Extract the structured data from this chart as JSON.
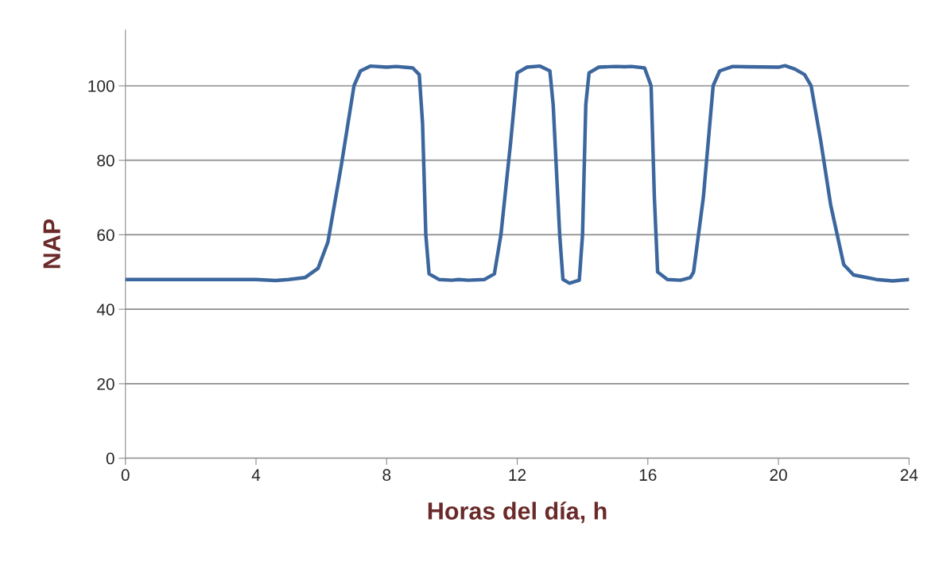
{
  "chart_data": {
    "type": "line",
    "xlabel": "Horas del día, h",
    "ylabel": "NAP",
    "xlim": [
      0,
      24
    ],
    "xticks": [
      0,
      4,
      8,
      12,
      16,
      20,
      24
    ],
    "ylim": [
      0,
      115
    ],
    "yticks": [
      0,
      20,
      40,
      60,
      80,
      100
    ],
    "grid": "y",
    "marker": "none",
    "line_style": "solid",
    "series": [
      {
        "color": "#3c679e",
        "x": [
          0,
          4,
          4.6,
          5,
          5.5,
          5.9,
          6.2,
          6.6,
          7.0,
          7.2,
          7.5,
          8,
          8.3,
          8.8,
          9.0,
          9.1,
          9.2,
          9.3,
          9.6,
          10,
          10.2,
          10.5,
          11,
          11.3,
          11.5,
          11.8,
          12.0,
          12.3,
          12.7,
          13.0,
          13.1,
          13.3,
          13.4,
          13.6,
          13.9,
          14.0,
          14.1,
          14.2,
          14.5,
          15,
          15.3,
          15.5,
          15.9,
          16.1,
          16.2,
          16.3,
          16.6,
          17,
          17.3,
          17.4,
          17.7,
          18,
          18.2,
          18.6,
          19,
          20,
          20.2,
          20.5,
          20.8,
          21.0,
          21.3,
          21.6,
          22.0,
          22.3,
          23,
          23.5,
          24
        ],
        "values": [
          48,
          48,
          47.7,
          48,
          48.5,
          51,
          58,
          78,
          100,
          104,
          105.3,
          105,
          105.2,
          104.8,
          103,
          90,
          60,
          49.5,
          48,
          47.8,
          48,
          47.8,
          48,
          49.5,
          60,
          85,
          103.5,
          105,
          105.3,
          104,
          95,
          60,
          48,
          47,
          47.8,
          60,
          95,
          103.5,
          105,
          105.2,
          105.1,
          105.2,
          104.8,
          100,
          70,
          50,
          48,
          47.8,
          48.5,
          50,
          70,
          100,
          104,
          105.2,
          105.1,
          105,
          105.4,
          104.5,
          103,
          100,
          85,
          68,
          52,
          49.2,
          48,
          47.6,
          48
        ]
      }
    ]
  }
}
